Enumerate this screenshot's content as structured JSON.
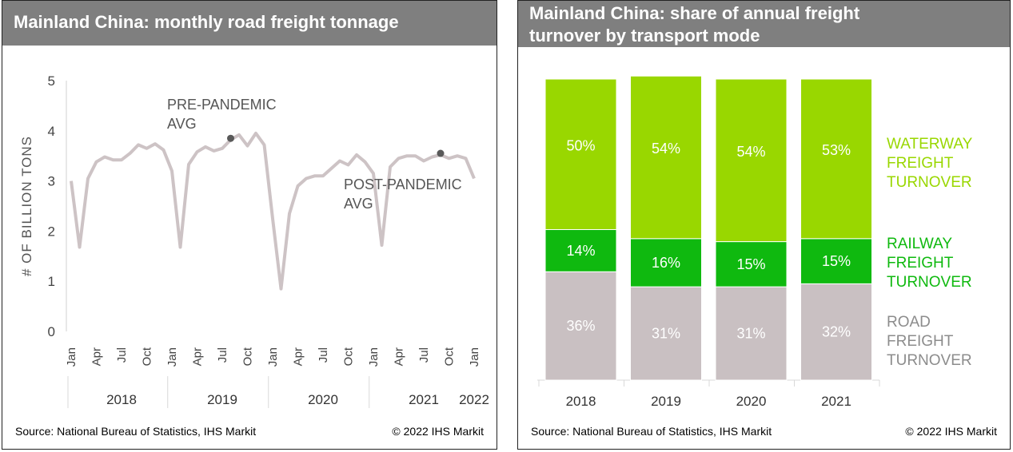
{
  "left": {
    "title": "Mainland China: monthly road freight tonnage",
    "source": "Source: National Bureau of Statistics, IHS Markit",
    "copyright": "© 2022 IHS Markit",
    "annotation_pre": [
      "PRE-PANDEMIC",
      "AVG"
    ],
    "annotation_post": [
      "POST-PANDEMIC",
      "AVG"
    ]
  },
  "right": {
    "title_line1": "Mainland China: share of annual freight",
    "title_line2": "turnover by transport mode",
    "source": "Source: National Bureau of Statistics, IHS Markit",
    "copyright": "© 2022 IHS Markit"
  },
  "colors": {
    "line": "#cdc3c5",
    "marker": "#595959",
    "waterway": "#99d700",
    "railway": "#0fb90f",
    "road": "#c9c0c2",
    "header": "#7f7f7f"
  },
  "chart_data": [
    {
      "type": "line",
      "title": "Mainland China: monthly road freight tonnage",
      "ylabel": "# OF BILLION TONS",
      "ylim": [
        0,
        5
      ],
      "yticks": [
        0,
        1,
        2,
        3,
        4,
        5
      ],
      "x_month_labels": [
        "Jan",
        "Apr",
        "Jul",
        "Oct",
        "Jan",
        "Apr",
        "Jul",
        "Oct",
        "Jan",
        "Apr",
        "Jul",
        "Oct",
        "Jan",
        "Apr",
        "Jul",
        "Oct",
        "Jan"
      ],
      "x_year_labels": [
        "2018",
        "2019",
        "2020",
        "2021",
        "2022"
      ],
      "start": "2018-01",
      "values": [
        3.0,
        1.68,
        3.05,
        3.38,
        3.48,
        3.42,
        3.42,
        3.55,
        3.72,
        3.65,
        3.74,
        3.62,
        3.2,
        1.68,
        3.33,
        3.58,
        3.68,
        3.6,
        3.65,
        3.82,
        3.92,
        3.7,
        3.95,
        3.72,
        2.25,
        0.85,
        2.35,
        2.9,
        3.05,
        3.1,
        3.1,
        3.25,
        3.4,
        3.32,
        3.52,
        3.38,
        3.15,
        1.72,
        3.28,
        3.45,
        3.5,
        3.5,
        3.4,
        3.48,
        3.52,
        3.45,
        3.5,
        3.45,
        3.05
      ],
      "markers": [
        {
          "date": "2019-08",
          "label": "PRE-PANDEMIC AVG",
          "value": 3.85
        },
        {
          "date": "2021-09",
          "label": "POST-PANDEMIC AVG",
          "value": 3.55
        }
      ],
      "grid": false
    },
    {
      "type": "bar",
      "stacked": true,
      "title": "Mainland China: share of annual freight turnover by transport mode",
      "categories": [
        "2018",
        "2019",
        "2020",
        "2021"
      ],
      "ylim": [
        0,
        100
      ],
      "series": [
        {
          "name": "ROAD FREIGHT TURNOVER",
          "values": [
            36,
            31,
            31,
            32
          ],
          "labels": [
            "36%",
            "31%",
            "31%",
            "32%"
          ]
        },
        {
          "name": "RAILWAY FREIGHT TURNOVER",
          "values": [
            14,
            16,
            15,
            15
          ],
          "labels": [
            "14%",
            "16%",
            "15%",
            "15%"
          ]
        },
        {
          "name": "WATERWAY FREIGHT TURNOVER",
          "values": [
            50,
            54,
            54,
            53
          ],
          "labels": [
            "50%",
            "54%",
            "54%",
            "53%"
          ]
        }
      ],
      "legend_lines": [
        [
          "WATERWAY",
          "FREIGHT",
          "TURNOVER"
        ],
        [
          "RAILWAY",
          "FREIGHT",
          "TURNOVER"
        ],
        [
          "ROAD",
          "FREIGHT",
          "TURNOVER"
        ]
      ],
      "legend_position": "right"
    }
  ]
}
